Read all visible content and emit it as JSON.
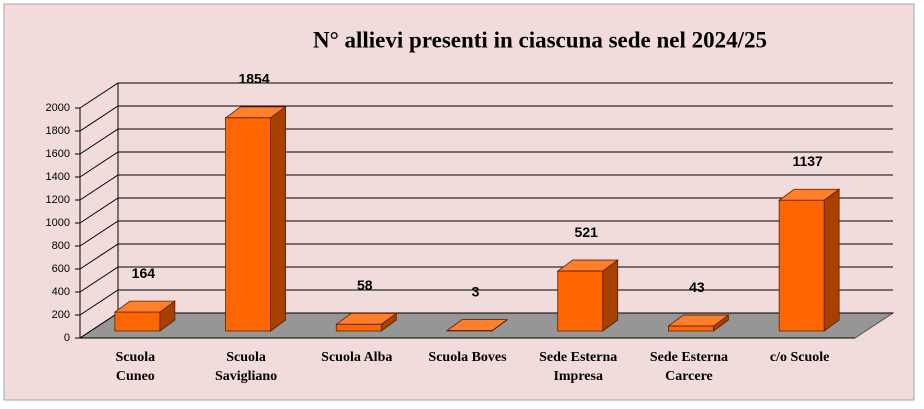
{
  "chart_data": {
    "type": "bar3d",
    "title": "N° allievi presenti in ciascuna sede nel 2024/25",
    "categories": [
      "Scuola\nCuneo",
      "Scuola\nSavigliano",
      "Scuola Alba",
      "Scuola Boves",
      "Sede Esterna\nImpresa",
      "Sede Esterna\nCarcere",
      "c/o Scuole"
    ],
    "values": [
      164,
      1854,
      58,
      3,
      521,
      43,
      1137
    ],
    "color": "#ff6600",
    "ylim": [
      0,
      2000
    ],
    "yticks": [
      0,
      200,
      400,
      600,
      800,
      1000,
      1200,
      1400,
      1600,
      1800,
      2000
    ],
    "grid": true
  }
}
